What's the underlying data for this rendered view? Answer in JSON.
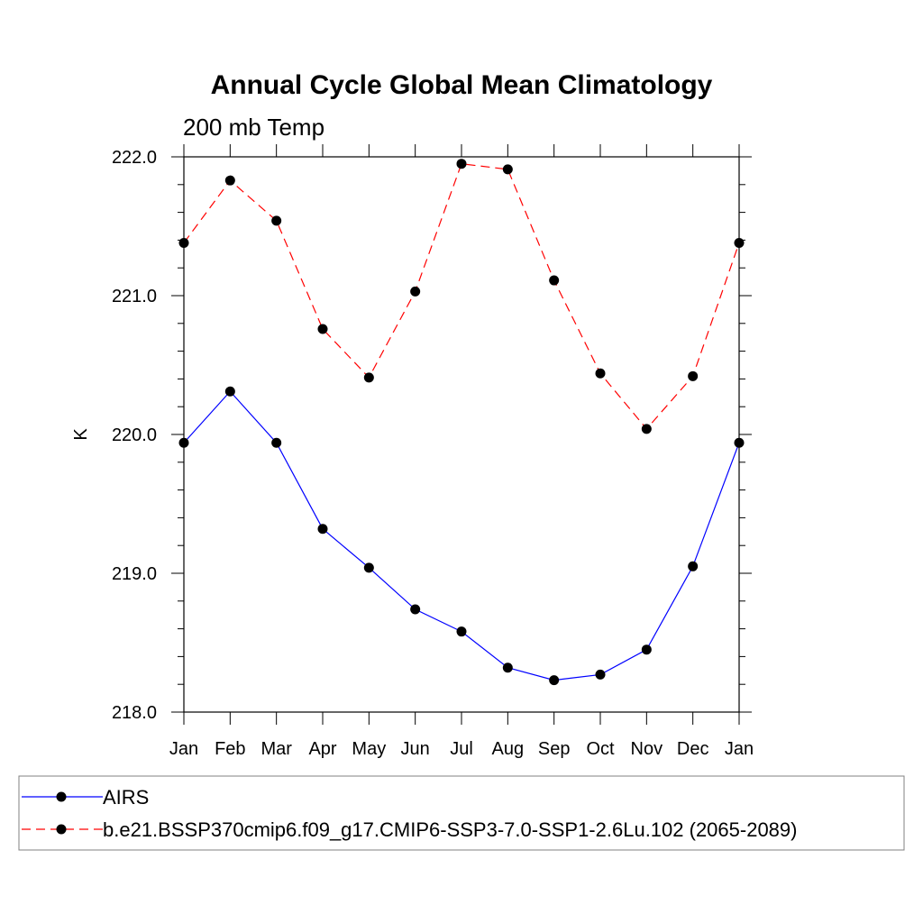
{
  "chart_data": {
    "type": "line",
    "title": "Annual Cycle Global Mean Climatology",
    "subtitle": "200 mb Temp",
    "xlabel": "",
    "ylabel": "K",
    "categories": [
      "Jan",
      "Feb",
      "Mar",
      "Apr",
      "May",
      "Jun",
      "Jul",
      "Aug",
      "Sep",
      "Oct",
      "Nov",
      "Dec",
      "Jan"
    ],
    "ylim": [
      218.0,
      222.0
    ],
    "y_ticks": [
      "218.0",
      "219.0",
      "220.0",
      "221.0",
      "222.0"
    ],
    "y_tick_values": [
      218.0,
      219.0,
      220.0,
      221.0,
      222.0
    ],
    "grid": false,
    "legend_position": "bottom",
    "series": [
      {
        "name": "AIRS",
        "color": "#0000ff",
        "line_style": "solid",
        "values": [
          219.94,
          220.31,
          219.94,
          219.32,
          219.04,
          218.74,
          218.58,
          218.32,
          218.23,
          218.27,
          218.45,
          219.05,
          219.94
        ]
      },
      {
        "name": "b.e21.BSSP370cmip6.f09_g17.CMIP6-SSP3-7.0-SSP1-2.6Lu.102 (2065-2089)",
        "color": "#ff0000",
        "line_style": "dashed",
        "values": [
          221.38,
          221.83,
          221.54,
          220.76,
          220.41,
          221.03,
          221.95,
          221.91,
          221.11,
          220.44,
          220.04,
          220.42,
          221.38
        ]
      }
    ]
  }
}
